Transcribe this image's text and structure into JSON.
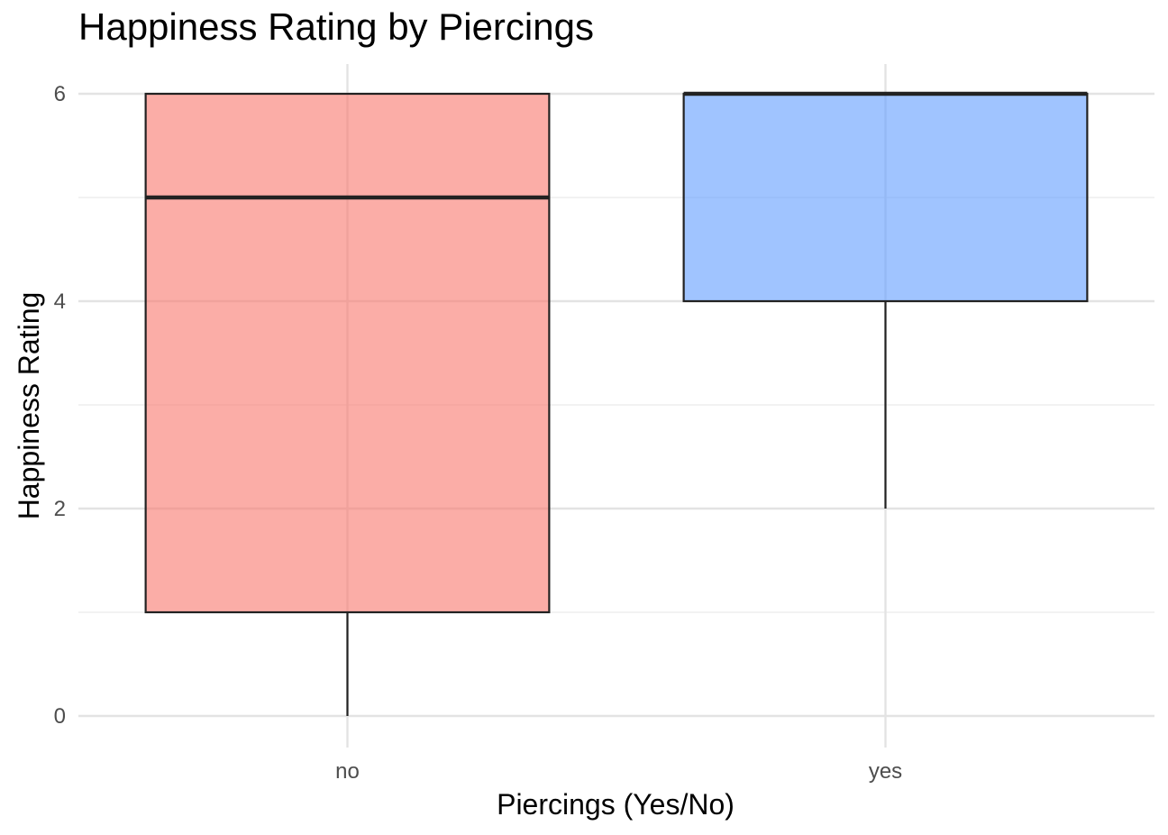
{
  "chart_data": {
    "type": "box",
    "title": "Happiness Rating by Piercings",
    "xlabel": "Piercings (Yes/No)",
    "ylabel": "Happiness Rating",
    "ylim": [
      0,
      6
    ],
    "yticks": [
      0,
      2,
      4,
      6
    ],
    "grid": true,
    "legend": "none",
    "categories": [
      "no",
      "yes"
    ],
    "boxes": [
      {
        "category": "no",
        "min": 0,
        "q1": 1,
        "median": 5,
        "q3": 6,
        "max": 6,
        "color": "#F8766D"
      },
      {
        "category": "yes",
        "min": 2,
        "q1": 4,
        "median": 6,
        "q3": 6,
        "max": 6,
        "color": "#619CFF"
      }
    ]
  }
}
